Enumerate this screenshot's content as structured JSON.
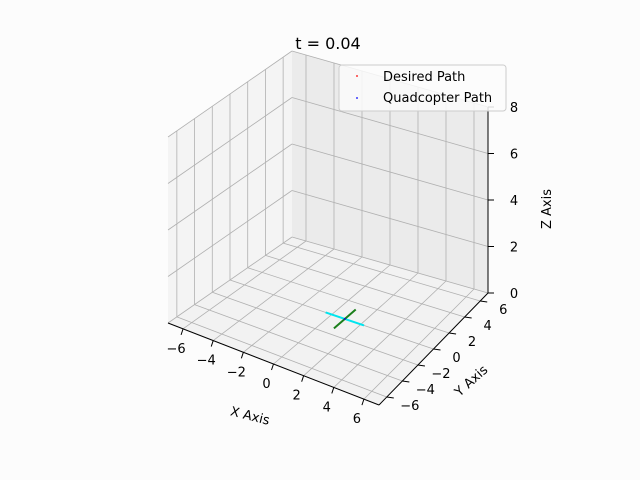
{
  "chart_data": {
    "type": "scatter",
    "projection": "3d",
    "title": "t = 0.04",
    "xlabel": "X Axis",
    "ylabel": "Y Axis",
    "zlabel": "Z Axis",
    "xlim": [
      -7,
      7
    ],
    "ylim": [
      -7,
      7
    ],
    "zlim": [
      0,
      8
    ],
    "xticks": [
      -6,
      -4,
      -2,
      0,
      2,
      4,
      6
    ],
    "yticks": [
      -6,
      -4,
      -2,
      0,
      2,
      4,
      6
    ],
    "zticks": [
      0,
      2,
      4,
      6,
      8
    ],
    "xtick_labels": [
      "−6",
      "−4",
      "−2",
      "0",
      "2",
      "4",
      "6"
    ],
    "ytick_labels": [
      "−6",
      "−4",
      "−2",
      "0",
      "2",
      "4",
      "6"
    ],
    "ztick_labels": [
      "0",
      "2",
      "4",
      "6",
      "8"
    ],
    "grid": true,
    "legend_position": "top-right",
    "series": [
      {
        "name": "Desired Path",
        "marker": "point",
        "color": "#ff0000",
        "points": [
          [
            0.9,
            0.0,
            0.0
          ]
        ]
      },
      {
        "name": "Quadcopter Path",
        "marker": "point",
        "color": "#0000ff",
        "points": [
          [
            0.9,
            0.0,
            0.0
          ]
        ]
      }
    ],
    "quadcopter": {
      "position": [
        0.9,
        0.0,
        0.0
      ],
      "arm_colors": [
        "#00e5ee",
        "#1b7f1b"
      ],
      "arm_length": 0.6
    }
  }
}
